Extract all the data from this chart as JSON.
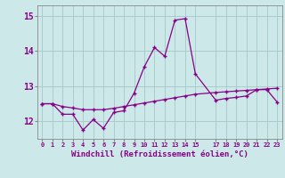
{
  "xlabel": "Windchill (Refroidissement éolien,°C)",
  "bg_color": "#cce8e8",
  "grid_color": "#aacccc",
  "line_color": "#880088",
  "x_hours": [
    0,
    1,
    2,
    3,
    4,
    5,
    6,
    7,
    8,
    9,
    10,
    11,
    12,
    13,
    14,
    15,
    17,
    18,
    19,
    20,
    21,
    22,
    23
  ],
  "windchill": [
    12.5,
    12.5,
    12.2,
    12.2,
    11.75,
    12.05,
    11.8,
    12.25,
    12.3,
    12.8,
    13.55,
    14.1,
    13.85,
    14.88,
    14.92,
    13.35,
    12.6,
    12.65,
    12.68,
    12.72,
    12.9,
    12.9,
    12.55
  ],
  "temp": [
    12.5,
    12.5,
    12.42,
    12.38,
    12.33,
    12.33,
    12.33,
    12.37,
    12.42,
    12.47,
    12.52,
    12.57,
    12.62,
    12.67,
    12.72,
    12.77,
    12.82,
    12.84,
    12.86,
    12.88,
    12.9,
    12.92,
    12.94
  ],
  "ylim": [
    11.5,
    15.3
  ],
  "yticks": [
    12,
    13,
    14,
    15
  ],
  "xlim": [
    -0.5,
    23.5
  ],
  "x_ticks_labels": [
    "0",
    "1",
    "2",
    "3",
    "4",
    "5",
    "6",
    "7",
    "8",
    "9",
    "10",
    "11",
    "12",
    "13",
    "14",
    "15",
    "17",
    "18",
    "19",
    "20",
    "21",
    "22",
    "23"
  ]
}
